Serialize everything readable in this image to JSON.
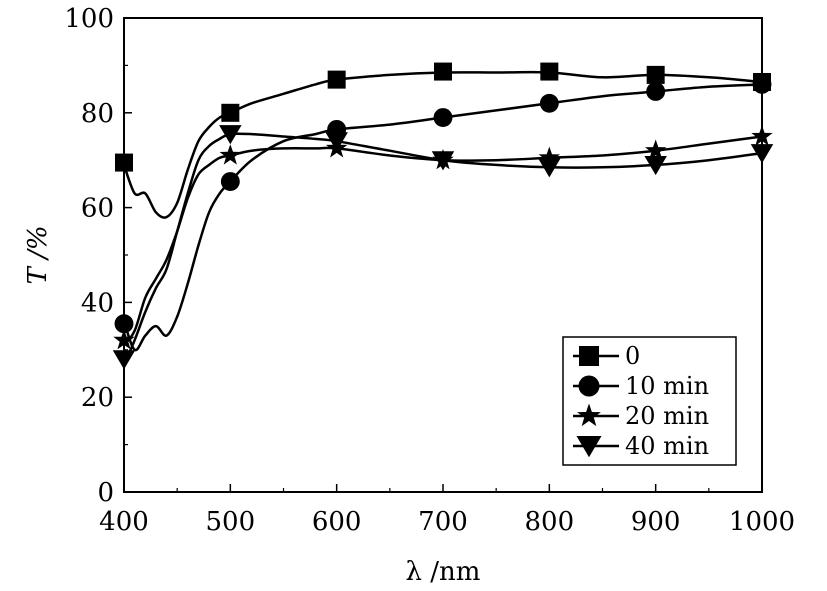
{
  "chart_data": {
    "type": "line",
    "title": "",
    "xlabel": "λ  /nm",
    "ylabel": "T /%",
    "xlim": [
      400,
      1000
    ],
    "ylim": [
      0,
      100
    ],
    "xticks": [
      400,
      500,
      600,
      700,
      800,
      900,
      1000
    ],
    "yticks": [
      0,
      20,
      40,
      60,
      80,
      100
    ],
    "grid": false,
    "legend_position": "bottom-right",
    "line_color": "#000000",
    "series": [
      {
        "name": "0",
        "marker": "square",
        "x": [
          400,
          410,
          420,
          430,
          440,
          450,
          460,
          470,
          480,
          490,
          500,
          520,
          550,
          580,
          600,
          650,
          700,
          750,
          800,
          850,
          900,
          950,
          1000
        ],
        "y": [
          69,
          63,
          63,
          59,
          58,
          61,
          68,
          74,
          77,
          79,
          80,
          82,
          84,
          86,
          87,
          88,
          88.5,
          88.5,
          88.5,
          87.5,
          88,
          87.5,
          86.5
        ],
        "marker_x": [
          400,
          500,
          600,
          700,
          800,
          900,
          1000
        ],
        "marker_y": [
          69.5,
          80,
          87,
          88.7,
          88.7,
          88,
          86.5
        ]
      },
      {
        "name": "10 min",
        "marker": "circle",
        "x": [
          400,
          410,
          420,
          430,
          440,
          450,
          460,
          470,
          480,
          490,
          500,
          520,
          550,
          580,
          600,
          650,
          700,
          750,
          800,
          850,
          900,
          950,
          1000
        ],
        "y": [
          36,
          30,
          33,
          35,
          33,
          37,
          44,
          52,
          59,
          63,
          65.5,
          70,
          74,
          75.5,
          76.5,
          77.5,
          79,
          80.5,
          82,
          83.5,
          84.5,
          85.5,
          86
        ],
        "marker_x": [
          400,
          500,
          600,
          700,
          800,
          900,
          1000
        ],
        "marker_y": [
          35.5,
          65.5,
          76.5,
          79,
          82,
          84.5,
          86
        ]
      },
      {
        "name": "20 min",
        "marker": "star",
        "x": [
          400,
          410,
          420,
          430,
          440,
          450,
          460,
          470,
          480,
          490,
          500,
          520,
          550,
          580,
          600,
          650,
          700,
          750,
          800,
          850,
          900,
          950,
          1000
        ],
        "y": [
          31,
          34,
          41,
          45,
          49,
          55,
          62,
          67,
          69,
          70.5,
          71,
          72,
          72.5,
          72.5,
          72.5,
          71,
          70,
          70,
          70.5,
          71,
          72,
          73.5,
          75
        ],
        "marker_x": [
          400,
          500,
          600,
          700,
          800,
          900,
          1000
        ],
        "marker_y": [
          32,
          71,
          72.5,
          70,
          70.5,
          72,
          75
        ]
      },
      {
        "name": "40 min",
        "marker": "triangle-down",
        "x": [
          400,
          410,
          420,
          430,
          440,
          450,
          460,
          470,
          480,
          490,
          500,
          520,
          550,
          580,
          600,
          650,
          700,
          750,
          800,
          850,
          900,
          950,
          1000
        ],
        "y": [
          27,
          32,
          38,
          43,
          47,
          55,
          63,
          70,
          73,
          74.5,
          75.5,
          75.5,
          75,
          74.5,
          74,
          72,
          70,
          69,
          68.5,
          68.5,
          69,
          70,
          71.5
        ],
        "marker_x": [
          400,
          500,
          600,
          700,
          800,
          900,
          1000
        ],
        "marker_y": [
          28,
          75.5,
          74,
          70,
          68.5,
          69,
          71.5
        ]
      }
    ]
  }
}
